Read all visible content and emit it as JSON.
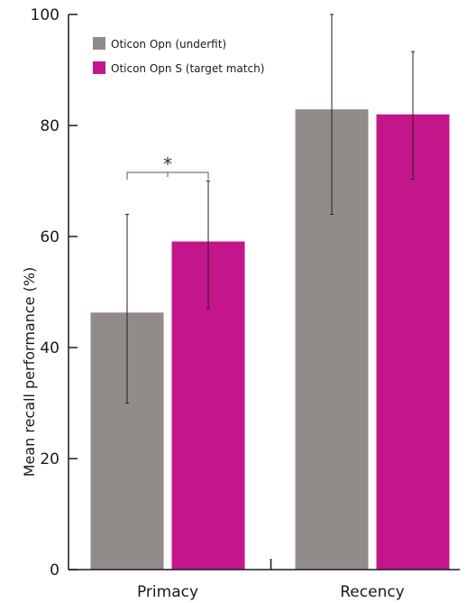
{
  "chart_data": {
    "type": "bar",
    "title": "",
    "xlabel": "",
    "ylabel": "Mean recall performance (%)",
    "ylim": [
      0,
      100
    ],
    "yticks": [
      0,
      20,
      40,
      60,
      80,
      100
    ],
    "grid": false,
    "legend_position": "top-left",
    "categories": [
      "Primacy",
      "Recency"
    ],
    "series": [
      {
        "name": "Oticon Opn (underfit)",
        "color": "#918c89",
        "values": [
          46.3,
          82.9
        ],
        "error_low": [
          30,
          64
        ],
        "error_high": [
          64,
          100
        ]
      },
      {
        "name": "Oticon Opn S (target match)",
        "color": "#c4168b",
        "values": [
          59.1,
          82.0
        ],
        "error_low": [
          47,
          70.3
        ],
        "error_high": [
          70,
          93.3
        ]
      }
    ],
    "annotations": [
      {
        "text": "*",
        "between_category": 0
      }
    ]
  }
}
